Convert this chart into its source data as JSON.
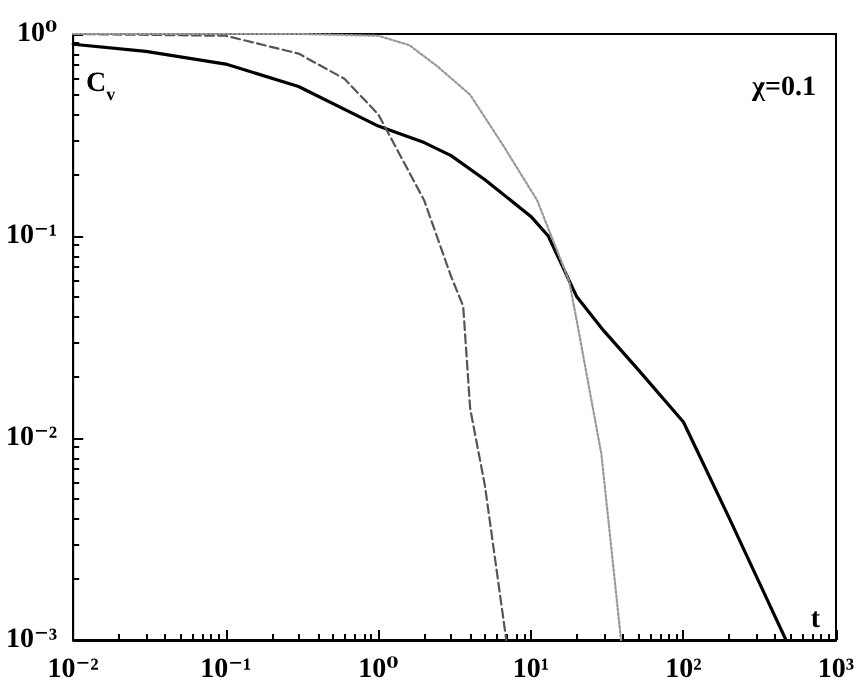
{
  "chart_data": {
    "type": "line",
    "xlabel": "t",
    "ylabel": "C$_{v}$",
    "annotations": [
      "χ=0.1"
    ],
    "log": "xy",
    "grid": false,
    "marker": "none",
    "xlim": [
      0.01,
      1000
    ],
    "ylim": [
      0.001,
      1
    ],
    "xticks": [
      {
        "value": 0.01,
        "label": "10⁻²"
      },
      {
        "value": 0.1,
        "label": "10⁻¹"
      },
      {
        "value": 1,
        "label": "10⁰"
      },
      {
        "value": 10,
        "label": "10¹"
      },
      {
        "value": 100,
        "label": "10²"
      },
      {
        "value": 1000,
        "label": "10³"
      }
    ],
    "yticks": [
      {
        "value": 0.001,
        "label": "10⁻³"
      },
      {
        "value": 0.01,
        "label": "10⁻²"
      },
      {
        "value": 0.1,
        "label": "10⁻¹"
      },
      {
        "value": 1,
        "label": "10⁰"
      }
    ],
    "series": [
      {
        "color": "#000000",
        "line_style": "solid",
        "x": [
          0.01,
          0.03,
          0.1,
          0.3,
          1,
          2,
          3,
          5,
          10,
          13,
          20,
          30,
          50,
          100,
          200,
          470
        ],
        "values": [
          0.89,
          0.82,
          0.71,
          0.55,
          0.35,
          0.29,
          0.25,
          0.19,
          0.125,
          0.1,
          0.05,
          0.034,
          0.022,
          0.012,
          0.004,
          0.001
        ]
      },
      {
        "color": "#555555",
        "line_style": "dashed",
        "x": [
          0.01,
          0.1,
          0.3,
          0.6,
          1,
          2,
          3,
          3.6,
          4,
          5,
          6.9
        ],
        "values": [
          1,
          0.98,
          0.8,
          0.6,
          0.4,
          0.15,
          0.063,
          0.045,
          0.014,
          0.0058,
          0.001
        ]
      },
      {
        "color": "#999999",
        "line_style": "dotted",
        "x": [
          0.01,
          0.3,
          1,
          1.6,
          2.45,
          4,
          6.6,
          11,
          17.8,
          20,
          29,
          39
        ],
        "values": [
          1,
          1,
          0.98,
          0.88,
          0.69,
          0.5,
          0.28,
          0.15,
          0.06,
          0.038,
          0.0083,
          0.001
        ]
      }
    ]
  }
}
